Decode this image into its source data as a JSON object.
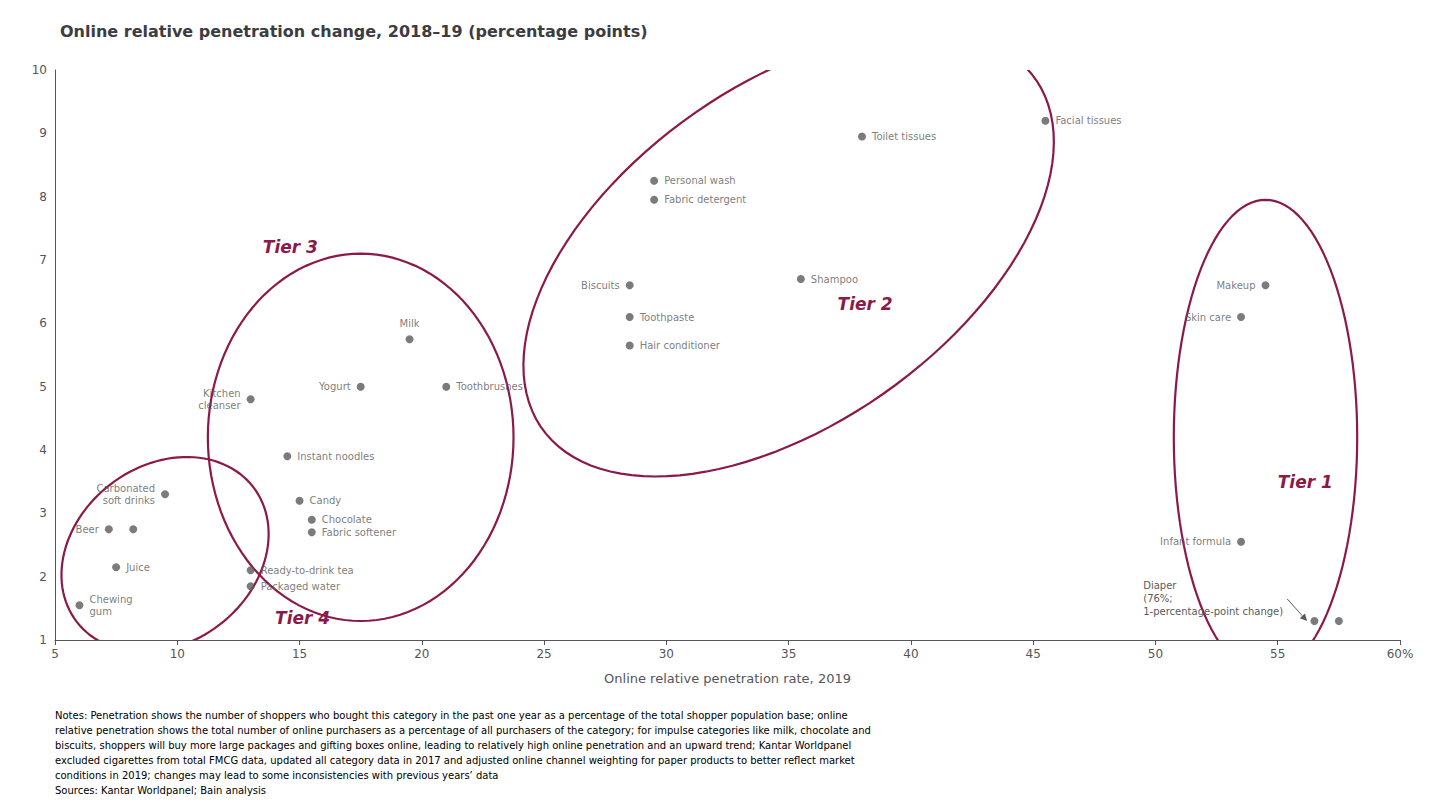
{
  "chart_data": {
    "type": "scatter",
    "title": "Online relative penetration change, 2018–19 (percentage points)",
    "xlabel": "Online relative penetration rate, 2019",
    "xlim": [
      5,
      60
    ],
    "ylim": [
      1,
      10
    ],
    "xticks": [
      5,
      10,
      15,
      20,
      25,
      30,
      35,
      40,
      45,
      50,
      55,
      {
        "value": 60,
        "label": "60%"
      }
    ],
    "yticks": [
      1,
      2,
      3,
      4,
      5,
      6,
      7,
      8,
      9,
      10
    ],
    "grid": false,
    "color": "#5a5a5a",
    "x": [
      6.0,
      7.5,
      7.2,
      8.2,
      9.5,
      13.0,
      13.0,
      13.0,
      14.5,
      15.0,
      15.5,
      15.5,
      17.5,
      19.5,
      21.0,
      28.5,
      28.5,
      28.5,
      29.5,
      29.5,
      35.5,
      38.0,
      45.5,
      54.5,
      53.5,
      53.5,
      56.5,
      57.5
    ],
    "values": [
      1.55,
      2.15,
      2.75,
      2.75,
      3.3,
      1.85,
      2.1,
      4.8,
      3.9,
      3.2,
      2.9,
      2.7,
      5.0,
      5.75,
      5.0,
      6.6,
      6.1,
      5.65,
      8.25,
      7.95,
      6.7,
      8.95,
      9.2,
      6.6,
      6.1,
      2.55,
      1.3,
      1.3
    ],
    "labels": [
      "Chewing\ngum",
      "Juice",
      "Beer",
      null,
      "Carbonated\nsoft drinks",
      "Packaged water",
      "Ready-to-drink tea",
      "Kitchen\ncleanser",
      "Instant noodles",
      "Candy",
      "Chocolate",
      "Fabric softener",
      "Yogurt",
      "Milk",
      "Toothbrushes",
      "Biscuits",
      "Toothpaste",
      "Hair conditioner",
      "Personal wash",
      "Fabric detergent",
      "Shampoo",
      "Toilet tissues",
      "Facial tissues",
      "Makeup",
      "Skin care",
      "Infant formula",
      null,
      null
    ],
    "tiers": [
      {
        "name": "Tier 4",
        "cx": 9.5,
        "cy": 2.35,
        "width": 8.5,
        "height": 3.0,
        "angle": 5,
        "label_x": 14.0,
        "label_y": 1.35,
        "color": "#8b1a4a"
      },
      {
        "name": "Tier 3",
        "cx": 17.5,
        "cy": 4.2,
        "width": 12.5,
        "height": 5.8,
        "angle": 0,
        "label_x": 13.5,
        "label_y": 7.2,
        "color": "#8b1a4a"
      },
      {
        "name": "Tier 2",
        "cx": 35.0,
        "cy": 7.1,
        "width": 22.0,
        "height": 6.0,
        "angle": 10,
        "label_x": 37.0,
        "label_y": 6.3,
        "color": "#8b1a4a"
      },
      {
        "name": "Tier 1",
        "cx": 54.5,
        "cy": 4.2,
        "width": 7.5,
        "height": 7.5,
        "angle": 0,
        "label_x": 55.0,
        "label_y": 3.5,
        "color": "#8b1a4a"
      }
    ],
    "annotations": [
      {
        "text": "Diaper\n(76%;\n1-percentage-point change)",
        "x": 49.5,
        "y": 1.65,
        "arrow_x": 56.2,
        "arrow_y": 1.3
      }
    ],
    "notes": "Notes: Penetration shows the number of shoppers who bought this category in the past one year as a percentage of the total shopper population base; online\nrelative penetration shows the total number of online purchasers as a percentage of all purchasers of the category; for impulse categories like milk, chocolate and\nbiscuits, shoppers will buy more large packages and gifting boxes online, leading to relatively high online penetration and an upward trend; Kantar Worldpanel\nexcluded cigarettes from total FMCG data, updated all category data in 2017 and adjusted online channel weighting for paper products to better reflect market\nconditions in 2019; changes may lead to some inconsistencies with previous years’ data\nSources: Kantar Worldpanel; Bain analysis"
  }
}
